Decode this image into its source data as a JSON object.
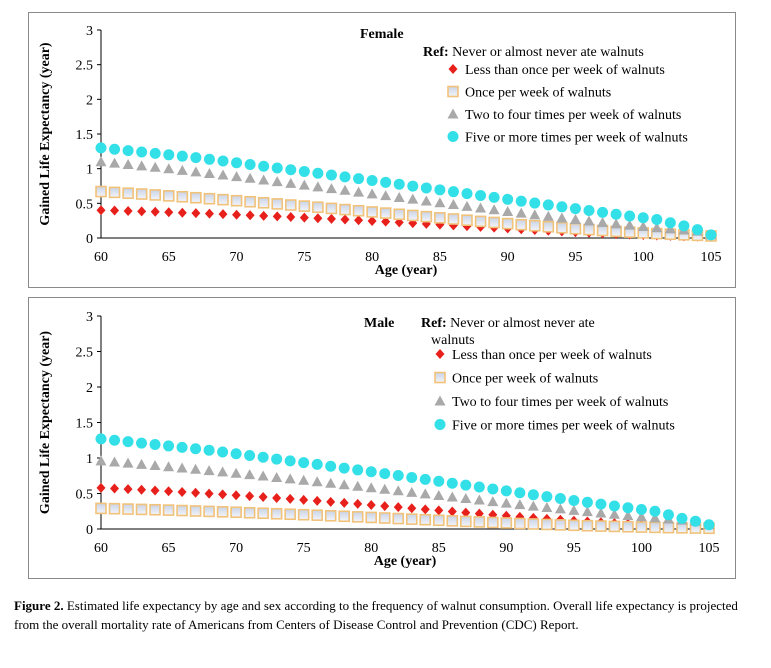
{
  "chart_data": [
    {
      "type": "scatter",
      "title": "Female",
      "xlabel": "Age (year)",
      "ylabel": "Gained Life Expectancy (year)",
      "xlim": [
        60,
        105
      ],
      "ylim": [
        0,
        3
      ],
      "xticks": [
        "60",
        "65",
        "70",
        "75",
        "80",
        "85",
        "90",
        "95",
        "100",
        "105"
      ],
      "yticks": [
        "0",
        "0.5",
        "1",
        "1.5",
        "2",
        "2.5",
        "3"
      ],
      "legend_ref": [
        "Ref:",
        " Never or almost never ate walnuts"
      ],
      "x": [
        60,
        61,
        62,
        63,
        64,
        65,
        66,
        67,
        68,
        69,
        70,
        71,
        72,
        73,
        74,
        75,
        76,
        77,
        78,
        79,
        80,
        81,
        82,
        83,
        84,
        85,
        86,
        87,
        88,
        89,
        90,
        91,
        92,
        93,
        94,
        95,
        96,
        97,
        98,
        99,
        100,
        101,
        102,
        103,
        104,
        105
      ],
      "series": [
        {
          "name": "Less than once per week of walnuts",
          "marker": "diamond",
          "color": "#e8201c",
          "values": [
            0.4,
            0.396,
            0.39,
            0.384,
            0.378,
            0.372,
            0.365,
            0.358,
            0.351,
            0.344,
            0.336,
            0.328,
            0.32,
            0.312,
            0.303,
            0.294,
            0.285,
            0.276,
            0.266,
            0.256,
            0.246,
            0.236,
            0.225,
            0.215,
            0.204,
            0.193,
            0.182,
            0.171,
            0.16,
            0.149,
            0.138,
            0.127,
            0.116,
            0.105,
            0.095,
            0.085,
            0.076,
            0.067,
            0.058,
            0.05,
            0.043,
            0.036,
            0.03,
            0.024,
            0.019,
            0.015
          ]
        },
        {
          "name": "Once per week of walnuts",
          "marker": "square",
          "color": "#f1c27a",
          "values": [
            0.67,
            0.658,
            0.646,
            0.634,
            0.621,
            0.608,
            0.595,
            0.581,
            0.567,
            0.553,
            0.538,
            0.523,
            0.508,
            0.492,
            0.476,
            0.46,
            0.444,
            0.427,
            0.41,
            0.393,
            0.376,
            0.359,
            0.342,
            0.325,
            0.308,
            0.291,
            0.274,
            0.257,
            0.24,
            0.224,
            0.208,
            0.192,
            0.177,
            0.162,
            0.148,
            0.134,
            0.121,
            0.108,
            0.096,
            0.085,
            0.074,
            0.064,
            0.055,
            0.046,
            0.038,
            0.03
          ]
        },
        {
          "name": "Two to four times per week of walnuts",
          "marker": "triangle",
          "color": "#a9a9a9",
          "values": [
            1.1,
            1.08,
            1.06,
            1.04,
            1.02,
            0.998,
            0.976,
            0.954,
            0.931,
            0.908,
            0.885,
            0.861,
            0.837,
            0.813,
            0.788,
            0.763,
            0.738,
            0.713,
            0.688,
            0.662,
            0.637,
            0.611,
            0.585,
            0.56,
            0.534,
            0.508,
            0.483,
            0.457,
            0.432,
            0.407,
            0.382,
            0.358,
            0.334,
            0.311,
            0.288,
            0.266,
            0.245,
            0.224,
            0.204,
            0.185,
            0.166,
            0.148,
            0.131,
            0.115,
            0.1,
            0.045
          ]
        },
        {
          "name": "Five or more times per week of walnuts",
          "marker": "circle",
          "color": "#33e0e8",
          "values": [
            1.3,
            1.28,
            1.26,
            1.24,
            1.22,
            1.2,
            1.18,
            1.16,
            1.135,
            1.11,
            1.085,
            1.06,
            1.035,
            1.01,
            0.985,
            0.96,
            0.934,
            0.908,
            0.882,
            0.856,
            0.83,
            0.803,
            0.776,
            0.749,
            0.722,
            0.695,
            0.668,
            0.64,
            0.613,
            0.586,
            0.558,
            0.531,
            0.504,
            0.477,
            0.45,
            0.423,
            0.396,
            0.369,
            0.343,
            0.317,
            0.292,
            0.267,
            0.22,
            0.175,
            0.12,
            0.045
          ]
        }
      ]
    },
    {
      "type": "scatter",
      "title": "Male",
      "xlabel": "Age (year)",
      "ylabel": "Gained Life Expectancy (year)",
      "xlim": [
        60,
        105
      ],
      "ylim": [
        0,
        3
      ],
      "xticks": [
        "60",
        "65",
        "70",
        "75",
        "80",
        "85",
        "90",
        "95",
        "100",
        "105"
      ],
      "yticks": [
        "0",
        "0.5",
        "1",
        "1.5",
        "2",
        "2.5",
        "3"
      ],
      "legend_ref": [
        "Ref:",
        " Never or almost never ate",
        "walnuts"
      ],
      "x": [
        60,
        61,
        62,
        63,
        64,
        65,
        66,
        67,
        68,
        69,
        70,
        71,
        72,
        73,
        74,
        75,
        76,
        77,
        78,
        79,
        80,
        81,
        82,
        83,
        84,
        85,
        86,
        87,
        88,
        89,
        90,
        91,
        92,
        93,
        94,
        95,
        96,
        97,
        98,
        99,
        100,
        101,
        102,
        103,
        104,
        105
      ],
      "series": [
        {
          "name": "Less than once per week of walnuts",
          "marker": "diamond",
          "color": "#e8201c",
          "values": [
            0.58,
            0.571,
            0.562,
            0.552,
            0.542,
            0.532,
            0.521,
            0.51,
            0.499,
            0.487,
            0.475,
            0.463,
            0.45,
            0.437,
            0.424,
            0.41,
            0.396,
            0.382,
            0.368,
            0.353,
            0.338,
            0.323,
            0.308,
            0.293,
            0.277,
            0.262,
            0.246,
            0.231,
            0.216,
            0.201,
            0.186,
            0.171,
            0.157,
            0.143,
            0.13,
            0.117,
            0.105,
            0.093,
            0.082,
            0.072,
            0.062,
            0.053,
            0.045,
            0.037,
            0.03,
            0.025
          ]
        },
        {
          "name": "Once per week of walnuts",
          "marker": "square",
          "color": "#f1c27a",
          "values": [
            0.29,
            0.286,
            0.281,
            0.276,
            0.271,
            0.266,
            0.26,
            0.254,
            0.248,
            0.242,
            0.236,
            0.229,
            0.222,
            0.215,
            0.208,
            0.201,
            0.194,
            0.186,
            0.179,
            0.171,
            0.163,
            0.155,
            0.147,
            0.139,
            0.131,
            0.123,
            0.115,
            0.107,
            0.1,
            0.092,
            0.085,
            0.078,
            0.071,
            0.064,
            0.058,
            0.052,
            0.046,
            0.041,
            0.036,
            0.031,
            0.027,
            0.023,
            0.019,
            0.016,
            0.013,
            0.01
          ]
        },
        {
          "name": "Two to four times per week of walnuts",
          "marker": "triangle",
          "color": "#a9a9a9",
          "values": [
            0.96,
            0.944,
            0.928,
            0.911,
            0.894,
            0.877,
            0.859,
            0.841,
            0.823,
            0.804,
            0.785,
            0.766,
            0.746,
            0.726,
            0.706,
            0.686,
            0.665,
            0.644,
            0.623,
            0.602,
            0.581,
            0.559,
            0.538,
            0.516,
            0.494,
            0.472,
            0.451,
            0.429,
            0.408,
            0.386,
            0.365,
            0.344,
            0.323,
            0.303,
            0.283,
            0.263,
            0.244,
            0.225,
            0.207,
            0.189,
            0.172,
            0.156,
            0.14,
            0.125,
            0.11,
            0.06
          ]
        },
        {
          "name": "Five or more times per week of walnuts",
          "marker": "circle",
          "color": "#33e0e8",
          "values": [
            1.27,
            1.25,
            1.23,
            1.21,
            1.19,
            1.17,
            1.15,
            1.13,
            1.11,
            1.085,
            1.06,
            1.035,
            1.01,
            0.985,
            0.96,
            0.935,
            0.91,
            0.884,
            0.858,
            0.832,
            0.806,
            0.78,
            0.753,
            0.726,
            0.699,
            0.672,
            0.645,
            0.618,
            0.591,
            0.564,
            0.537,
            0.51,
            0.483,
            0.456,
            0.429,
            0.402,
            0.376,
            0.35,
            0.324,
            0.299,
            0.274,
            0.25,
            0.2,
            0.15,
            0.11,
            0.06
          ]
        }
      ]
    }
  ],
  "caption": {
    "label": "Figure 2.",
    "text": "  Estimated life expectancy by age and sex according to the frequency of walnut consumption.  Overall life expectancy is projected from the overall mortality rate of Americans from Centers of Disease Control and Prevention (CDC) Report."
  }
}
